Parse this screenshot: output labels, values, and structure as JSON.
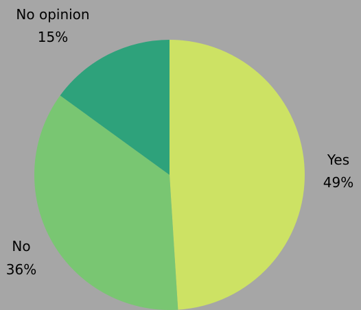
{
  "chart_data": {
    "type": "pie",
    "slices": [
      {
        "label": "Yes",
        "value": 49,
        "value_label": "49%",
        "color": "#cde264"
      },
      {
        "label": "No",
        "value": 36,
        "value_label": "36%",
        "color": "#79c672"
      },
      {
        "label": "No opinion",
        "value": 15,
        "value_label": "15%",
        "color": "#2ea27b"
      }
    ],
    "start_angle": "12 o'clock",
    "direction": "clockwise",
    "labels": "outside",
    "background": "#a6a6a6"
  }
}
